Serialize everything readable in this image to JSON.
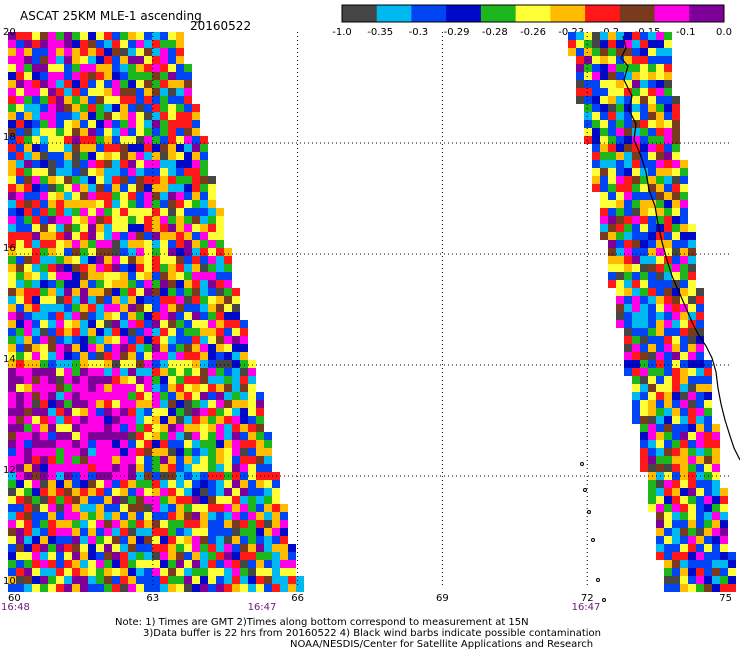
{
  "header": {
    "product": "ASCAT 25KM MLE-1 ascending",
    "date": "20160522"
  },
  "colorbar": {
    "tick_labels": [
      "-1.0",
      "-0.35",
      "-0.3",
      "-0.29",
      "-0.28",
      "-0.26",
      "-0.23",
      "-0.2",
      "-0.15",
      "-0.1",
      "0.0"
    ],
    "colors": [
      "#454545",
      "#00b8f0",
      "#0044f4",
      "#0008c8",
      "#1db61d",
      "#ffff38",
      "#ffbc00",
      "#ff1818",
      "#7a3a1e",
      "#ff00e4",
      "#7e0098"
    ]
  },
  "map": {
    "lon_range": [
      60,
      75
    ],
    "lat_range": [
      10,
      20
    ],
    "x_ticks": [
      "60",
      "63",
      "66",
      "69",
      "72",
      "75"
    ],
    "y_ticks": [
      "20",
      "18",
      "16",
      "14",
      "12",
      "10"
    ],
    "pass_times": [
      "16:48",
      "16:47",
      "16:47"
    ],
    "swaths": [
      {
        "name": "western pass",
        "lon_west_bottom": 60.0,
        "lon_east_bottom": 66.0,
        "lon_west_top": 60.0,
        "lon_east_top": 63.5,
        "lat_bottom": 10.0,
        "lat_top": 20.0
      },
      {
        "name": "eastern pass",
        "lon_west_bottom": 73.6,
        "lon_east_bottom": 75.0,
        "lon_west_top": 71.6,
        "lon_east_top": 73.6,
        "lat_bottom": 10.0,
        "lat_top": 20.0
      }
    ]
  },
  "footer": {
    "note_line1": "Note: 1) Times are GMT 2)Times along bottom correspond to measurement at 15N",
    "note_line2": "3)Data buffer is 22 hrs from 20160522 4) Black wind barbs indicate possible contamination",
    "credit": "NOAA/NESDIS/Center for Satellite Applications and Research"
  }
}
